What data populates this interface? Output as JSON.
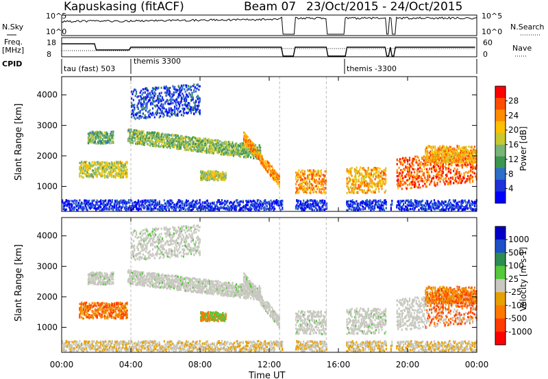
{
  "header": {
    "station": "Kapuskasing (fitACF)",
    "beam": "Beam 07",
    "date_range": "23/Oct/2015 - 24/Oct/2015"
  },
  "strips": {
    "nsky_label": "N.Sky",
    "nsearch_label": "N.Search",
    "freq_label_line1": "Freq.",
    "freq_label_line2": "[MHz]",
    "nave_label": "Nave",
    "cpid_label": "CPID",
    "nsky_ticks": [
      "10^5",
      "10^0"
    ],
    "nsearch_ticks": [
      "10^5",
      "10^0"
    ],
    "freq_ticks": [
      "18",
      "8"
    ],
    "nave_ticks": [
      "60",
      "0"
    ],
    "cpid_segments": [
      "tau (fast) 503",
      "themis 3300",
      "themis -3300"
    ]
  },
  "axes": {
    "xlabel": "Time UT",
    "ylabel": "Slant Range [km]"
  },
  "colorbars": {
    "power": {
      "label": "Power [dB]",
      "ticks": [
        "28",
        "24",
        "20",
        "16",
        "12",
        "8",
        "4"
      ],
      "colors": [
        "#ff0000",
        "#ff4d00",
        "#ff8c00",
        "#ffc000",
        "#c8c832",
        "#78b478",
        "#3c9650",
        "#2d6ec8",
        "#1e32dc",
        "#0000ff"
      ]
    },
    "velocity": {
      "label": "Velocity [m s-1]",
      "ticks": [
        "1000",
        "500",
        "100",
        "25",
        "-25",
        "-100",
        "-500",
        "-1000"
      ],
      "colors": [
        "#0000c8",
        "#1e50c8",
        "#2d8c50",
        "#55c83c",
        "#c8c8c0",
        "#e6a000",
        "#ff7800",
        "#ff3c00",
        "#ff0000"
      ]
    }
  },
  "chart_data": [
    {
      "type": "heatmap",
      "name": "Power",
      "xlabel": "Time UT",
      "ylabel": "Slant Range [km]",
      "x_ticks": [
        "00:00",
        "04:00",
        "08:00",
        "12:00",
        "16:00",
        "20:00",
        "00:00"
      ],
      "y_ticks": [
        1000,
        2000,
        3000,
        4000
      ],
      "xlim_hours": [
        0,
        24
      ],
      "ylim_km": [
        180,
        4600
      ],
      "colorbar_label": "Power [dB]",
      "colorbar_ticks": [
        4,
        8,
        12,
        16,
        20,
        24,
        28
      ]
    },
    {
      "type": "heatmap",
      "name": "Velocity",
      "xlabel": "Time UT",
      "ylabel": "Slant Range [km]",
      "x_ticks": [
        "00:00",
        "04:00",
        "08:00",
        "12:00",
        "16:00",
        "20:00",
        "00:00"
      ],
      "y_ticks": [
        1000,
        2000,
        3000,
        4000
      ],
      "xlim_hours": [
        0,
        24
      ],
      "ylim_km": [
        180,
        4600
      ],
      "colorbar_label": "Velocity [m s-1]",
      "colorbar_ticks": [
        1000,
        500,
        100,
        25,
        -25,
        -100,
        -500,
        -1000
      ]
    }
  ]
}
